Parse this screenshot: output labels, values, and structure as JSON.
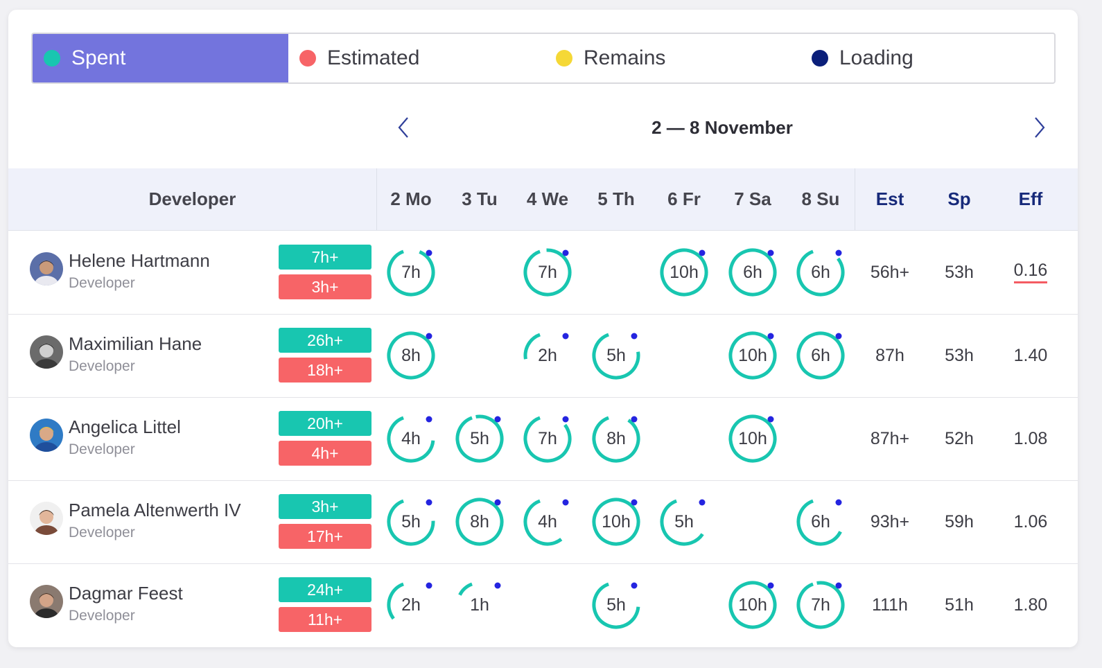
{
  "legend": [
    {
      "label": "Spent",
      "color": "#18c6b0",
      "active": true
    },
    {
      "label": "Estimated",
      "color": "#f76467",
      "active": false
    },
    {
      "label": "Remains",
      "color": "#f5d836",
      "active": false
    },
    {
      "label": "Loading",
      "color": "#0b1f7a",
      "active": false
    }
  ],
  "week": {
    "label": "2 — 8 November"
  },
  "columns": {
    "developer": "Developer",
    "days": [
      "2 Mo",
      "3 Tu",
      "4 We",
      "5 Th",
      "6 Fr",
      "7 Sa",
      "8 Su"
    ],
    "est": "Est",
    "sp": "Sp",
    "eff": "Eff"
  },
  "colors": {
    "ring": "#18c6b0",
    "ring_marker": "#2424e0",
    "eff_warning": "#f45b62"
  },
  "rows": [
    {
      "name": "Helene Hartmann",
      "role": "Developer",
      "avatar": "avatar-helene",
      "spent_badge": "7h+",
      "est_badge": "3h+",
      "days": [
        {
          "label": "7h",
          "fill": 0.88
        },
        null,
        {
          "label": "7h",
          "fill": 0.95
        },
        null,
        {
          "label": "10h",
          "fill": 1.0
        },
        {
          "label": "6h",
          "fill": 1.0
        },
        {
          "label": "6h",
          "fill": 0.8
        }
      ],
      "est": "56h+",
      "sp": "53h",
      "eff": "0.16",
      "eff_warning": true
    },
    {
      "name": "Maximilian Hane",
      "role": "Developer",
      "avatar": "avatar-maximilian",
      "spent_badge": "26h+",
      "est_badge": "18h+",
      "days": [
        {
          "label": "8h",
          "fill": 1.0
        },
        null,
        {
          "label": "2h",
          "fill": 0.22
        },
        {
          "label": "5h",
          "fill": 0.72
        },
        null,
        {
          "label": "10h",
          "fill": 1.0
        },
        {
          "label": "6h",
          "fill": 1.0
        }
      ],
      "est": "87h",
      "sp": "53h",
      "eff": "1.40",
      "eff_warning": false
    },
    {
      "name": "Angelica Littel",
      "role": "Developer",
      "avatar": "avatar-angelica",
      "spent_badge": "20h+",
      "est_badge": "4h+",
      "days": [
        {
          "label": "4h",
          "fill": 0.68
        },
        {
          "label": "5h",
          "fill": 0.97
        },
        {
          "label": "7h",
          "fill": 0.8
        },
        {
          "label": "8h",
          "fill": 0.85
        },
        null,
        {
          "label": "10h",
          "fill": 1.0
        },
        null
      ],
      "est": "87h+",
      "sp": "52h",
      "eff": "1.08",
      "eff_warning": false
    },
    {
      "name": "Pamela Altenwerth IV",
      "role": "Developer",
      "avatar": "avatar-pamela",
      "spent_badge": "3h+",
      "est_badge": "17h+",
      "days": [
        {
          "label": "5h",
          "fill": 0.7
        },
        {
          "label": "8h",
          "fill": 1.0
        },
        {
          "label": "4h",
          "fill": 0.55
        },
        {
          "label": "10h",
          "fill": 1.0
        },
        {
          "label": "5h",
          "fill": 0.6
        },
        null,
        {
          "label": "6h",
          "fill": 0.62
        }
      ],
      "est": "93h+",
      "sp": "59h",
      "eff": "1.06",
      "eff_warning": false
    },
    {
      "name": "Dagmar Feest",
      "role": "Developer",
      "avatar": "avatar-dagmar",
      "spent_badge": "24h+",
      "est_badge": "11h+",
      "days": [
        {
          "label": "2h",
          "fill": 0.3
        },
        {
          "label": "1h",
          "fill": 0.12
        },
        null,
        {
          "label": "5h",
          "fill": 0.68
        },
        null,
        {
          "label": "10h",
          "fill": 1.0
        },
        {
          "label": "7h",
          "fill": 0.97
        }
      ],
      "est": "111h",
      "sp": "51h",
      "eff": "1.80",
      "eff_warning": false
    }
  ]
}
